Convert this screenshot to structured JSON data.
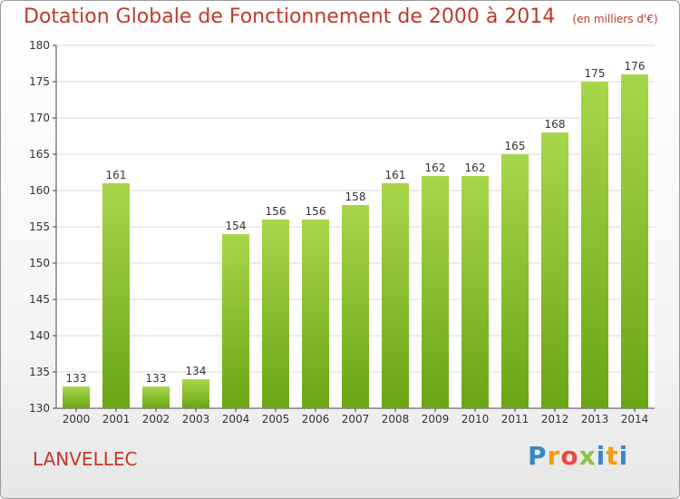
{
  "header": {
    "title": "Dotation Globale de Fonctionnement de 2000 à 2014",
    "subtitle": "(en milliers d'€)"
  },
  "footer": {
    "commune": "LANVELLEC",
    "logo_text": "Proxiti",
    "logo_colors": [
      "#3a86c8",
      "#f39c12",
      "#e74c3c",
      "#8bc34a",
      "#3a86c8",
      "#f39c12"
    ]
  },
  "colors": {
    "bar_light": "#a8d64a",
    "bar_dark": "#6aa514",
    "grid": "#d9d9d9",
    "axis": "#444444",
    "title": "#c0392b"
  },
  "chart_data": {
    "type": "bar",
    "title": "Dotation Globale de Fonctionnement de 2000 à 2014",
    "subtitle": "(en milliers d'€)",
    "xlabel": "",
    "ylabel": "",
    "categories": [
      "2000",
      "2001",
      "2002",
      "2003",
      "2004",
      "2005",
      "2006",
      "2007",
      "2008",
      "2009",
      "2010",
      "2011",
      "2012",
      "2013",
      "2014"
    ],
    "values": [
      133,
      161,
      133,
      134,
      154,
      156,
      156,
      158,
      161,
      162,
      162,
      165,
      168,
      175,
      176
    ],
    "ylim": [
      130,
      180
    ],
    "yticks": [
      130,
      135,
      140,
      145,
      150,
      155,
      160,
      165,
      170,
      175,
      180
    ],
    "grid": true,
    "legend": "none"
  }
}
